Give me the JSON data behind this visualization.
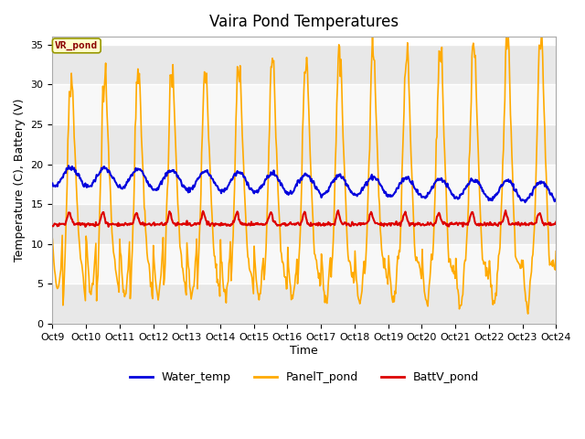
{
  "title": "Vaira Pond Temperatures",
  "xlabel": "Time",
  "ylabel": "Temperature (C), Battery (V)",
  "site_label": "VR_pond",
  "xlim_start": 0,
  "xlim_end": 15,
  "ylim": [
    0,
    36
  ],
  "yticks": [
    0,
    5,
    10,
    15,
    20,
    25,
    30,
    35
  ],
  "xtick_labels": [
    "Oct 9",
    "Oct 10",
    "Oct 11",
    "Oct 12",
    "Oct 13",
    "Oct 14",
    "Oct 15",
    "Oct 16",
    "Oct 17",
    "Oct 18",
    "Oct 19",
    "Oct 20",
    "Oct 21",
    "Oct 22",
    "Oct 23",
    "Oct 24"
  ],
  "xtick_positions": [
    0,
    1,
    2,
    3,
    4,
    5,
    6,
    7,
    8,
    9,
    10,
    11,
    12,
    13,
    14,
    15
  ],
  "water_temp_color": "#0000dd",
  "panel_temp_color": "#ffaa00",
  "batt_color": "#dd0000",
  "bg_color": "#ffffff",
  "plot_bg_color": "#ffffff",
  "band_colors": [
    "#e8e8e8",
    "#f8f8f8"
  ],
  "legend_labels": [
    "Water_temp",
    "PanelT_pond",
    "BattV_pond"
  ],
  "grid_color": "#cccccc",
  "grid_linewidth": 0.8,
  "title_fontsize": 12,
  "label_fontsize": 9,
  "tick_fontsize": 8,
  "legend_fontsize": 9,
  "line_width": 1.2
}
